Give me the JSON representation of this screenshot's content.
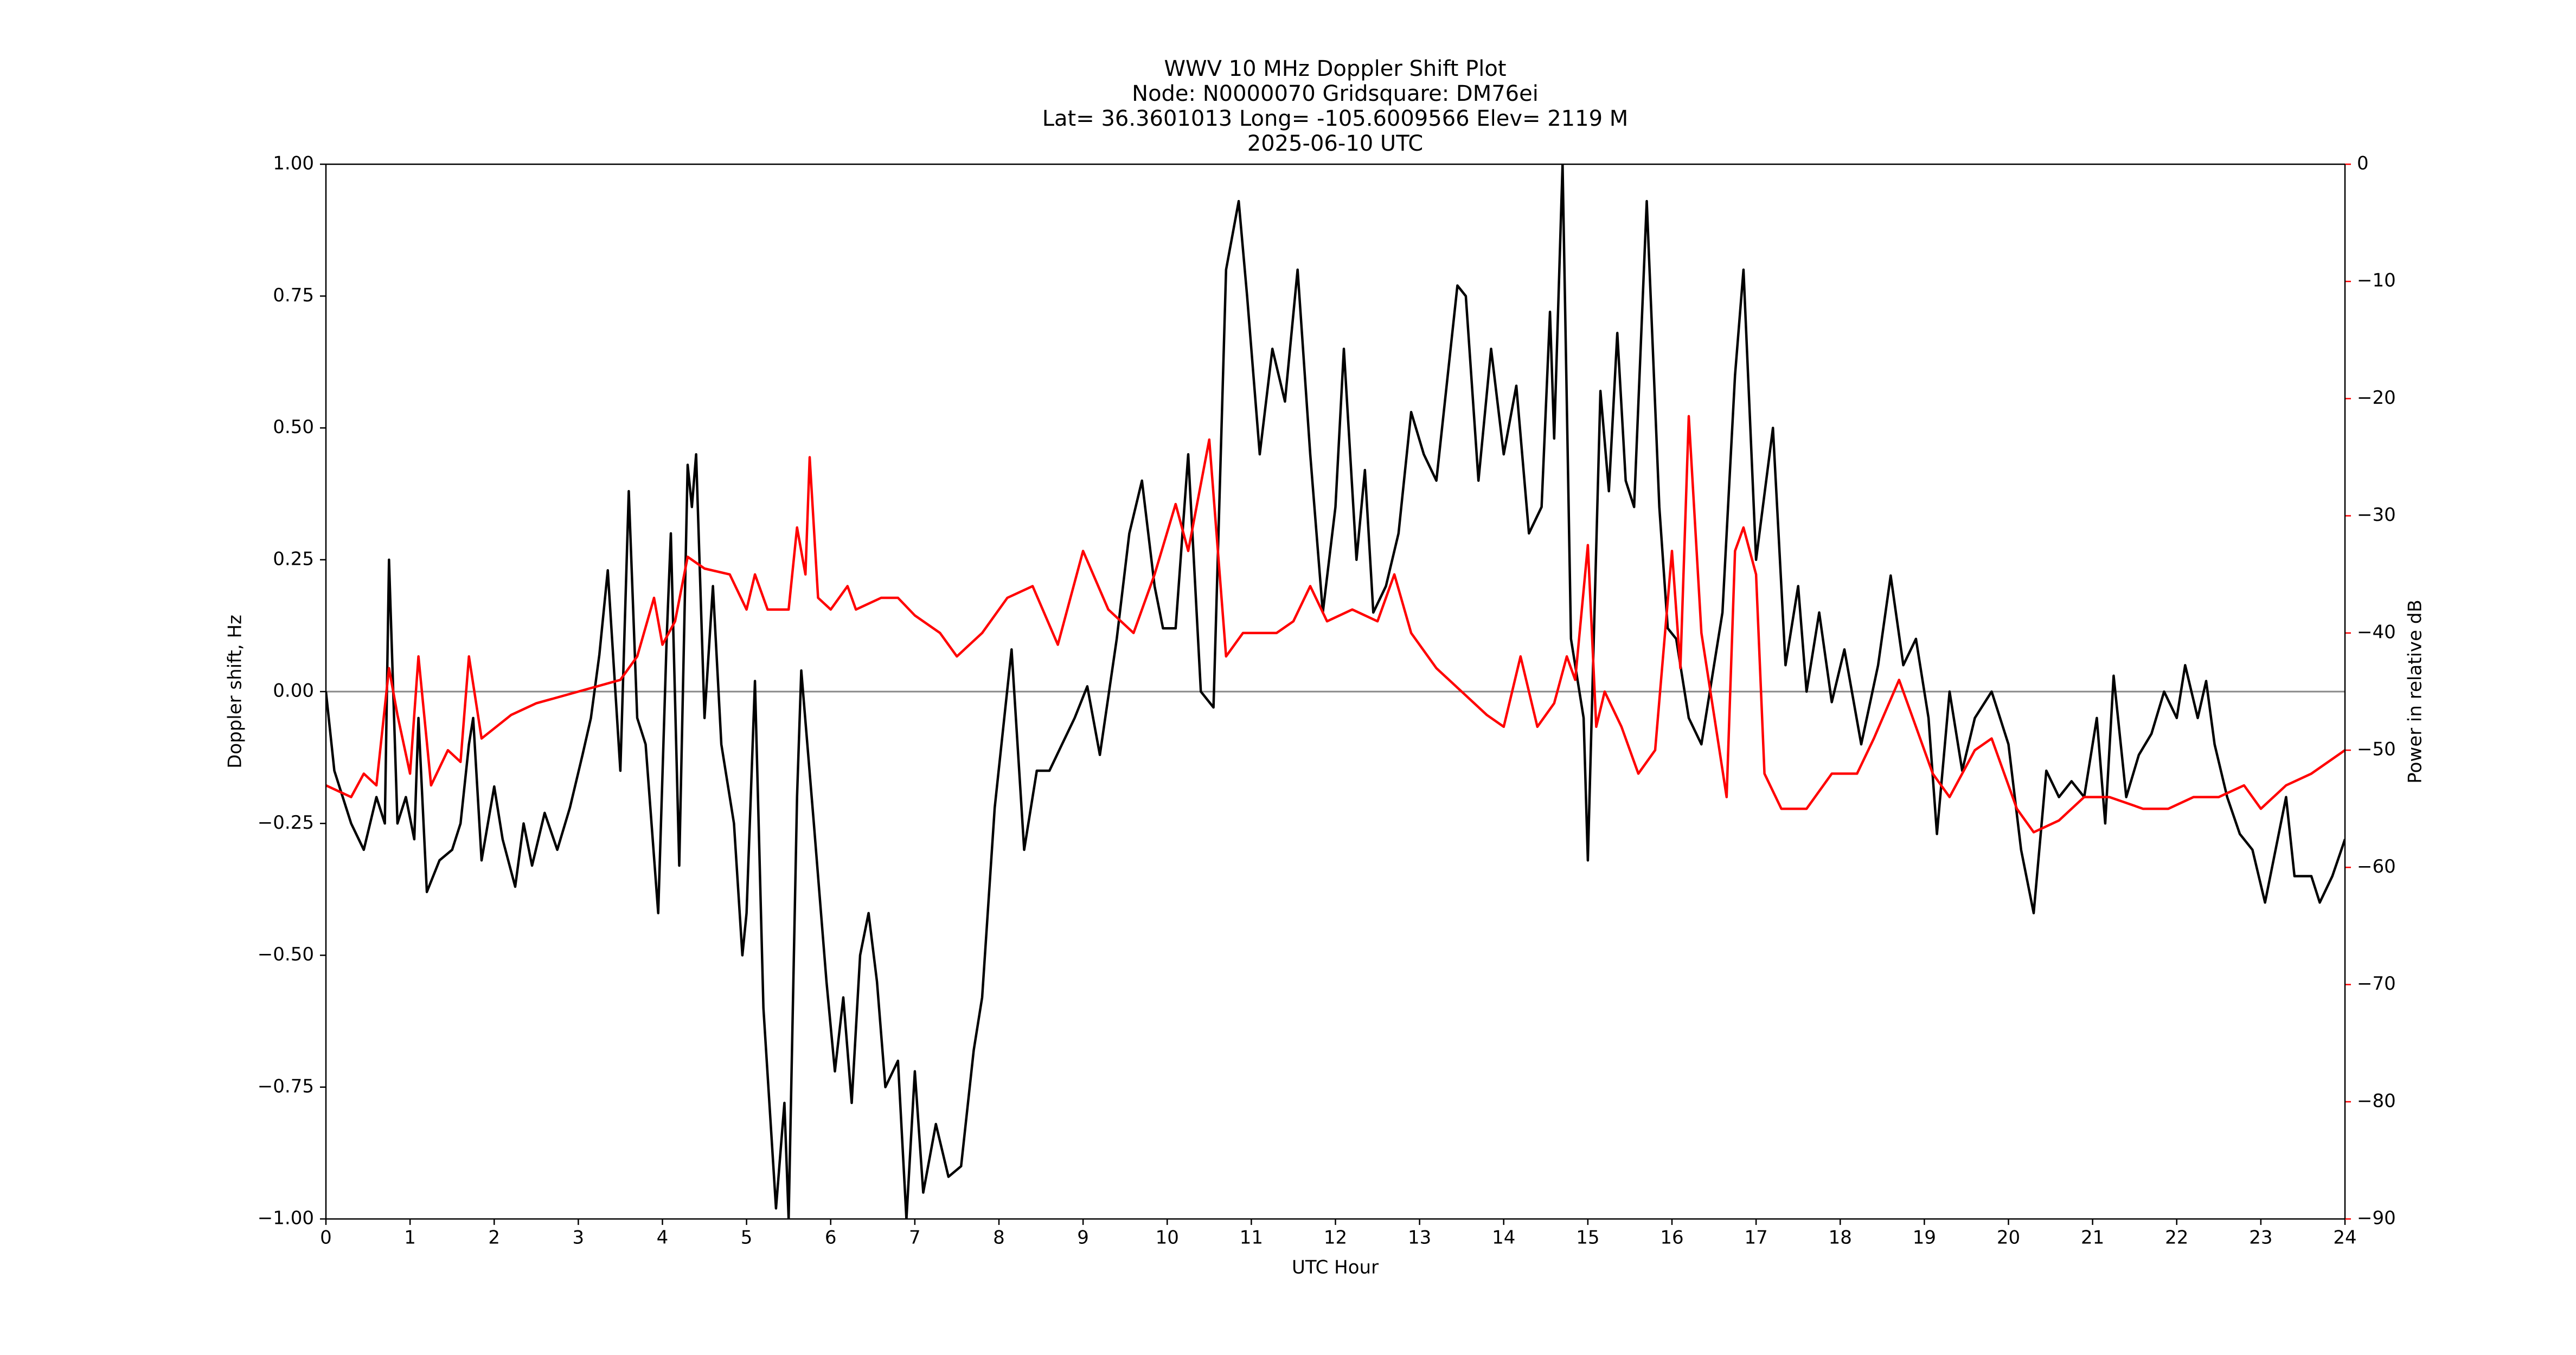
{
  "chart_data": {
    "type": "line",
    "title": [
      "WWV 10 MHz Doppler Shift Plot",
      "Node:  N0000070     Gridsquare:  DM76ei",
      "Lat= 36.3601013    Long= -105.6009566    Elev= 2119 M",
      "2025-06-10  UTC"
    ],
    "x_label": "UTC Hour",
    "y_label": "Doppler shift, Hz",
    "y2_label": "Power in relative dB",
    "xlim": [
      0,
      24
    ],
    "xticks": [
      0,
      1,
      2,
      3,
      4,
      5,
      6,
      7,
      8,
      9,
      10,
      11,
      12,
      13,
      14,
      15,
      16,
      17,
      18,
      19,
      20,
      21,
      22,
      23,
      24
    ],
    "ylim": [
      -1,
      1
    ],
    "yticks": [
      {
        "value": -1,
        "label": "−1.00"
      },
      {
        "value": -0.75,
        "label": "−0.75"
      },
      {
        "value": -0.5,
        "label": "−0.50"
      },
      {
        "value": -0.25,
        "label": "−0.25"
      },
      {
        "value": 0,
        "label": "0.00"
      },
      {
        "value": 0.25,
        "label": "0.25"
      },
      {
        "value": 0.5,
        "label": "0.50"
      },
      {
        "value": 0.75,
        "label": "0.75"
      },
      {
        "value": 1,
        "label": "1.00"
      }
    ],
    "y2lim": [
      -90,
      0
    ],
    "y2ticks": [
      {
        "value": -90,
        "label": "−90"
      },
      {
        "value": -80,
        "label": "−80"
      },
      {
        "value": -70,
        "label": "−70"
      },
      {
        "value": -60,
        "label": "−60"
      },
      {
        "value": -50,
        "label": "−50"
      },
      {
        "value": -40,
        "label": "−40"
      },
      {
        "value": -30,
        "label": "−30"
      },
      {
        "value": -20,
        "label": "−20"
      },
      {
        "value": -10,
        "label": "−10"
      },
      0
    ],
    "y2_color": "#ff0000",
    "zero_line": true,
    "zero_line_color": "#888888",
    "series": [
      {
        "color": "#000000",
        "x": [
          0,
          0.1,
          0.3,
          0.45,
          0.6,
          0.7,
          0.75,
          0.85,
          0.95,
          1.05,
          1.1,
          1.2,
          1.35,
          1.5,
          1.6,
          1.7,
          1.75,
          1.85,
          2.0,
          2.1,
          2.25,
          2.35,
          2.45,
          2.6,
          2.75,
          2.9,
          3.05,
          3.15,
          3.25,
          3.35,
          3.5,
          3.6,
          3.7,
          3.8,
          3.95,
          4.05,
          4.1,
          4.2,
          4.3,
          4.35,
          4.4,
          4.5,
          4.6,
          4.7,
          4.85,
          4.95,
          5.0,
          5.1,
          5.2,
          5.35,
          5.45,
          5.5,
          5.6,
          5.65,
          5.8,
          5.95,
          6.05,
          6.15,
          6.25,
          6.35,
          6.45,
          6.55,
          6.65,
          6.8,
          6.9,
          7.0,
          7.1,
          7.25,
          7.4,
          7.55,
          7.7,
          7.8,
          7.95,
          8.15,
          8.3,
          8.45,
          8.6,
          8.75,
          8.9,
          9.05,
          9.2,
          9.4,
          9.55,
          9.7,
          9.85,
          9.95,
          10.1,
          10.25,
          10.4,
          10.55,
          10.7,
          10.85,
          10.95,
          11.1,
          11.25,
          11.4,
          11.55,
          11.7,
          11.85,
          12.0,
          12.1,
          12.25,
          12.35,
          12.45,
          12.6,
          12.75,
          12.9,
          13.05,
          13.2,
          13.45,
          13.55,
          13.7,
          13.85,
          14.0,
          14.15,
          14.3,
          14.45,
          14.55,
          14.6,
          14.7,
          14.8,
          14.95,
          15.0,
          15.15,
          15.25,
          15.35,
          15.45,
          15.55,
          15.7,
          15.85,
          15.95,
          16.05,
          16.2,
          16.35,
          16.6,
          16.75,
          16.85,
          17.0,
          17.2,
          17.35,
          17.5,
          17.6,
          17.75,
          17.9,
          18.05,
          18.25,
          18.45,
          18.6,
          18.75,
          18.9,
          19.05,
          19.15,
          19.3,
          19.45,
          19.6,
          19.8,
          20.0,
          20.15,
          20.3,
          20.45,
          20.6,
          20.75,
          20.9,
          21.05,
          21.15,
          21.25,
          21.4,
          21.55,
          21.7,
          21.85,
          22.0,
          22.1,
          22.25,
          22.35,
          22.45,
          22.6,
          22.75,
          22.9,
          23.05,
          23.2,
          23.3,
          23.4,
          23.6,
          23.7,
          23.85,
          24.0
        ],
        "values": [
          0,
          -0.15,
          -0.25,
          -0.3,
          -0.2,
          -0.25,
          0.25,
          -0.25,
          -0.2,
          -0.28,
          -0.05,
          -0.38,
          -0.32,
          -0.3,
          -0.25,
          -0.1,
          -0.05,
          -0.32,
          -0.18,
          -0.28,
          -0.37,
          -0.25,
          -0.33,
          -0.23,
          -0.3,
          -0.22,
          -0.12,
          -0.05,
          0.07,
          0.23,
          -0.15,
          0.38,
          -0.05,
          -0.1,
          -0.42,
          0.1,
          0.3,
          -0.33,
          0.43,
          0.35,
          0.45,
          -0.05,
          0.2,
          -0.1,
          -0.25,
          -0.5,
          -0.42,
          0.02,
          -0.6,
          -0.98,
          -0.78,
          -1.0,
          -0.2,
          0.04,
          -0.25,
          -0.55,
          -0.72,
          -0.58,
          -0.78,
          -0.5,
          -0.42,
          -0.55,
          -0.75,
          -0.7,
          -1.0,
          -0.72,
          -0.95,
          -0.82,
          -0.92,
          -0.9,
          -0.68,
          -0.58,
          -0.22,
          0.08,
          -0.3,
          -0.15,
          -0.15,
          -0.1,
          -0.05,
          0.01,
          -0.12,
          0.1,
          0.3,
          0.4,
          0.2,
          0.12,
          0.12,
          0.45,
          0.0,
          -0.03,
          0.8,
          0.93,
          0.75,
          0.45,
          0.65,
          0.55,
          0.8,
          0.45,
          0.15,
          0.35,
          0.65,
          0.25,
          0.42,
          0.15,
          0.2,
          0.3,
          0.53,
          0.45,
          0.4,
          0.77,
          0.75,
          0.4,
          0.65,
          0.45,
          0.58,
          0.3,
          0.35,
          0.72,
          0.48,
          1.0,
          0.1,
          -0.05,
          -0.32,
          0.57,
          0.38,
          0.68,
          0.4,
          0.35,
          0.93,
          0.35,
          0.12,
          0.1,
          -0.05,
          -0.1,
          0.15,
          0.6,
          0.8,
          0.25,
          0.5,
          0.05,
          0.2,
          0.0,
          0.15,
          -0.02,
          0.08,
          -0.1,
          0.05,
          0.22,
          0.05,
          0.1,
          -0.05,
          -0.27,
          0.0,
          -0.15,
          -0.05,
          0.0,
          -0.1,
          -0.3,
          -0.42,
          -0.15,
          -0.2,
          -0.17,
          -0.2,
          -0.05,
          -0.25,
          0.03,
          -0.2,
          -0.12,
          -0.08,
          0.0,
          -0.05,
          0.05,
          -0.05,
          0.02,
          -0.1,
          -0.2,
          -0.27,
          -0.3,
          -0.4,
          -0.28,
          -0.2,
          -0.35,
          -0.35,
          -0.4,
          -0.35,
          -0.28
        ]
      },
      {
        "color": "#ff0000",
        "axis": "y2",
        "x": [
          0,
          0.3,
          0.45,
          0.6,
          0.75,
          0.85,
          1.0,
          1.1,
          1.25,
          1.45,
          1.6,
          1.7,
          1.85,
          2.2,
          2.5,
          3.0,
          3.5,
          3.7,
          3.9,
          4.0,
          4.15,
          4.3,
          4.5,
          4.8,
          5.0,
          5.1,
          5.25,
          5.5,
          5.6,
          5.7,
          5.75,
          5.85,
          6.0,
          6.2,
          6.3,
          6.6,
          6.8,
          7.0,
          7.3,
          7.5,
          7.8,
          8.1,
          8.4,
          8.7,
          9.0,
          9.3,
          9.6,
          9.85,
          10.1,
          10.25,
          10.5,
          10.7,
          10.9,
          11.3,
          11.5,
          11.7,
          11.9,
          12.2,
          12.5,
          12.7,
          12.9,
          13.2,
          13.5,
          13.8,
          14.0,
          14.2,
          14.4,
          14.6,
          14.75,
          14.85,
          15.0,
          15.1,
          15.2,
          15.4,
          15.6,
          15.8,
          16.0,
          16.1,
          16.2,
          16.35,
          16.5,
          16.65,
          16.75,
          16.85,
          17.0,
          17.1,
          17.3,
          17.6,
          17.9,
          18.2,
          18.4,
          18.7,
          18.9,
          19.1,
          19.3,
          19.6,
          19.8,
          20.1,
          20.3,
          20.6,
          20.9,
          21.2,
          21.6,
          21.9,
          22.2,
          22.5,
          22.8,
          23.0,
          23.3,
          23.6,
          24.0
        ],
        "values": [
          -53,
          -54,
          -52,
          -53,
          -43,
          -47,
          -52,
          -42,
          -53,
          -50,
          -51,
          -42,
          -49,
          -47,
          -46,
          -45,
          -44,
          -42,
          -37,
          -41,
          -39,
          -33.5,
          -34.5,
          -35,
          -38,
          -35,
          -38,
          -38,
          -31,
          -35,
          -25,
          -37,
          -38,
          -36,
          -38,
          -37,
          -37,
          -38.5,
          -40,
          -42,
          -40,
          -37,
          -36,
          -41,
          -33,
          -38,
          -40,
          -35,
          -29,
          -33,
          -23.5,
          -42,
          -40,
          -40,
          -39,
          -36,
          -39,
          -38,
          -39,
          -35,
          -40,
          -43,
          -45,
          -47,
          -48,
          -42,
          -48,
          -46,
          -42,
          -44,
          -32.5,
          -48,
          -45,
          -48,
          -52,
          -50,
          -33,
          -43,
          -21.5,
          -40,
          -47,
          -54,
          -33,
          -31,
          -35,
          -52,
          -55,
          -55,
          -52,
          -52,
          -49,
          -44,
          -48,
          -52,
          -54,
          -50,
          -49,
          -55,
          -57,
          -56,
          -54,
          -54,
          -55,
          -55,
          -54,
          -54,
          -53,
          -55,
          -53,
          -52,
          -50
        ]
      }
    ]
  }
}
